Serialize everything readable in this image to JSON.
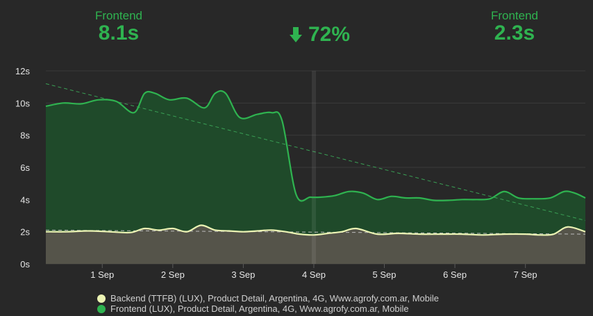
{
  "summary": {
    "left": {
      "label": "Frontend",
      "value": "8.1s"
    },
    "change": {
      "value": "72%",
      "direction": "down"
    },
    "right": {
      "label": "Frontend",
      "value": "2.3s"
    }
  },
  "chart_data": {
    "type": "area",
    "title": "",
    "xlabel": "",
    "ylabel": "",
    "ylim": [
      0,
      12
    ],
    "y_ticks": [
      "0s",
      "2s",
      "4s",
      "6s",
      "8s",
      "10s",
      "12s"
    ],
    "y_tick_values": [
      0,
      2,
      4,
      6,
      8,
      10,
      12
    ],
    "x_range": [
      30.2,
      37.85
    ],
    "x_ticks": [
      "1 Sep",
      "2 Sep",
      "3 Sep",
      "4 Sep",
      "5 Sep",
      "6 Sep",
      "7 Sep"
    ],
    "x_tick_values": [
      31,
      32,
      33,
      34,
      35,
      36,
      37
    ],
    "grid": true,
    "legend_position": "bottom",
    "highlight_x": 34,
    "series": [
      {
        "name": "Frontend (LUX), Product Detail, Argentina, 4G, Www.agrofy.com.ar, Mobile",
        "color": "#2fb350",
        "fill": "#1f4a2a",
        "x": [
          30.2,
          30.45,
          30.7,
          30.95,
          31.2,
          31.45,
          31.6,
          31.75,
          31.95,
          32.2,
          32.45,
          32.6,
          32.75,
          32.95,
          33.2,
          33.4,
          33.55,
          33.75,
          33.95,
          34.1,
          34.3,
          34.5,
          34.7,
          34.9,
          35.1,
          35.3,
          35.5,
          35.7,
          35.9,
          36.1,
          36.3,
          36.5,
          36.7,
          36.9,
          37.1,
          37.35,
          37.55,
          37.7,
          37.85
        ],
        "values": [
          9.8,
          10.0,
          9.95,
          10.2,
          10.1,
          9.4,
          10.6,
          10.6,
          10.2,
          10.3,
          9.7,
          10.6,
          10.6,
          9.1,
          9.3,
          9.4,
          8.9,
          4.3,
          4.15,
          4.15,
          4.25,
          4.5,
          4.4,
          4.0,
          4.2,
          4.1,
          4.1,
          3.95,
          3.95,
          4.0,
          4.0,
          4.05,
          4.5,
          4.1,
          4.05,
          4.1,
          4.5,
          4.4,
          4.1
        ]
      },
      {
        "name": "Backend (TTFB) (LUX), Product Detail, Argentina, 4G, Www.agrofy.com.ar, Mobile",
        "color": "#ecf4b4",
        "fill": "#55544a",
        "x": [
          30.2,
          30.5,
          30.8,
          31.1,
          31.4,
          31.6,
          31.8,
          32.0,
          32.2,
          32.4,
          32.6,
          32.8,
          33.0,
          33.2,
          33.4,
          33.6,
          33.8,
          34.0,
          34.2,
          34.4,
          34.6,
          34.9,
          35.2,
          35.5,
          35.8,
          36.1,
          36.4,
          36.7,
          37.0,
          37.2,
          37.4,
          37.6,
          37.85
        ],
        "values": [
          2.0,
          2.0,
          2.05,
          2.0,
          1.95,
          2.2,
          2.1,
          2.2,
          2.0,
          2.4,
          2.1,
          2.05,
          2.0,
          2.05,
          2.1,
          2.0,
          1.85,
          1.8,
          1.9,
          2.0,
          2.2,
          1.85,
          1.9,
          1.85,
          1.85,
          1.85,
          1.8,
          1.85,
          1.85,
          1.8,
          1.85,
          2.3,
          2.0
        ]
      }
    ],
    "trendlines": [
      {
        "series": "Frontend",
        "color": "#3aa055",
        "from": [
          30.2,
          11.2
        ],
        "to": [
          37.85,
          2.7
        ]
      },
      {
        "series": "Backend",
        "color": "#bdbdbd",
        "from": [
          30.2,
          2.1
        ],
        "to": [
          37.85,
          1.85
        ]
      }
    ]
  },
  "legend": [
    {
      "label": "Backend (TTFB) (LUX), Product Detail, Argentina, 4G, Www.agrofy.com.ar, Mobile",
      "color": "#ecf4b4"
    },
    {
      "label": "Frontend (LUX), Product Detail, Argentina, 4G, Www.agrofy.com.ar, Mobile",
      "color": "#2fb350"
    }
  ]
}
